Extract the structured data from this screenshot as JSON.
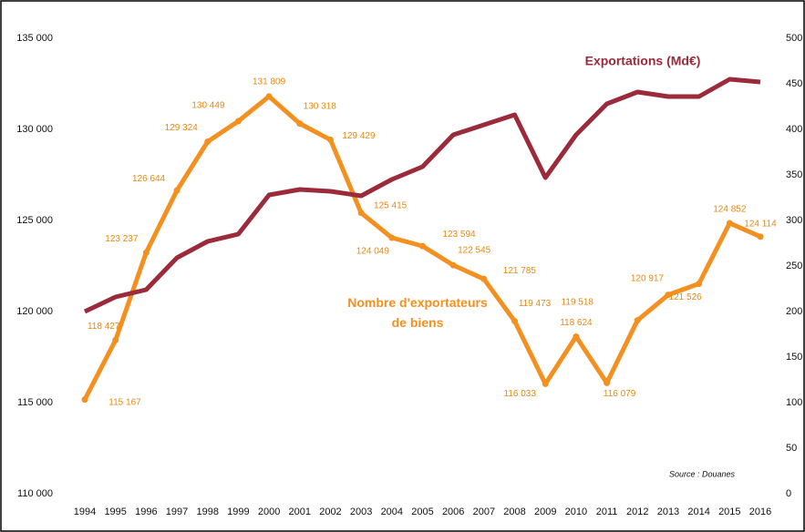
{
  "chart_data": {
    "type": "line",
    "x": [
      1994,
      1995,
      1996,
      1997,
      1998,
      1999,
      2000,
      2001,
      2002,
      2003,
      2004,
      2005,
      2006,
      2007,
      2008,
      2009,
      2010,
      2011,
      2012,
      2013,
      2014,
      2015,
      2016
    ],
    "series": [
      {
        "name": "Nombre d'exportateurs de biens",
        "color": "#f39020",
        "axis": "y",
        "values": [
          115167,
          118427,
          123237,
          126644,
          129324,
          130449,
          131809,
          130318,
          129429,
          125415,
          124049,
          123594,
          122545,
          121785,
          119473,
          116033,
          118624,
          116079,
          119518,
          120917,
          121526,
          124852,
          124114
        ],
        "value_labels": [
          "115 167",
          "118 427",
          "123 237",
          "126 644",
          "129 324",
          "130 449",
          "131 809",
          "130 318",
          "129 429",
          "125 415",
          "124 049",
          "123 594",
          "122 545",
          "121 785",
          "119 473",
          "116 033",
          "118 624",
          "116 079",
          "119 518",
          "120 917",
          "121 526",
          "124 852",
          "124 114"
        ]
      },
      {
        "name": "Exportations (Md€)",
        "color": "#9b2a3b",
        "axis": "y2",
        "values": [
          200,
          216,
          224,
          259,
          277,
          285,
          328,
          334,
          332,
          327,
          345,
          359,
          394,
          405,
          416,
          347,
          394,
          428,
          441,
          436,
          436,
          455,
          452
        ]
      }
    ],
    "ylim": [
      110000,
      135000
    ],
    "yticks": [
      {
        "value": 110000,
        "label": "110 000"
      },
      {
        "value": 115000,
        "label": "115 000"
      },
      {
        "value": 120000,
        "label": "120 000"
      },
      {
        "value": 125000,
        "label": "125 000"
      },
      {
        "value": 130000,
        "label": "130 000"
      },
      {
        "value": 135000,
        "label": "135 000"
      }
    ],
    "y2lim": [
      0,
      500
    ],
    "y2ticks": [
      0,
      50,
      100,
      150,
      200,
      250,
      300,
      350,
      400,
      450,
      500
    ],
    "source": "Source : Douanes",
    "grid": false
  }
}
